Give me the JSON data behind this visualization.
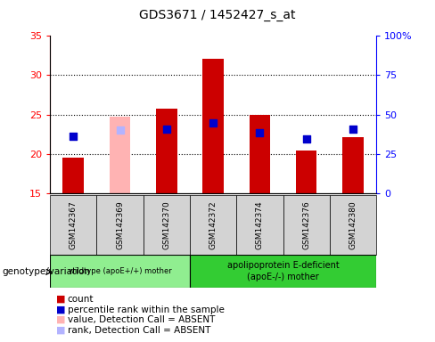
{
  "title": "GDS3671 / 1452427_s_at",
  "samples": [
    "GSM142367",
    "GSM142369",
    "GSM142370",
    "GSM142372",
    "GSM142374",
    "GSM142376",
    "GSM142380"
  ],
  "count_values": [
    19.5,
    15.0,
    25.7,
    32.1,
    25.0,
    20.4,
    22.1
  ],
  "absent_bar_values": [
    null,
    24.7,
    null,
    null,
    null,
    null,
    null
  ],
  "percentile_rank_left": [
    22.2,
    23.0,
    23.2,
    23.9,
    22.7,
    21.9,
    23.2
  ],
  "absent_rank_left": [
    null,
    23.1,
    null,
    null,
    null,
    null,
    null
  ],
  "is_absent": [
    false,
    true,
    false,
    false,
    false,
    false,
    false
  ],
  "ylim_left": [
    15,
    35
  ],
  "ylim_right": [
    0,
    100
  ],
  "yticks_left": [
    15,
    20,
    25,
    30,
    35
  ],
  "yticks_right": [
    0,
    25,
    50,
    75,
    100
  ],
  "ytick_labels_right": [
    "0",
    "25",
    "50",
    "75",
    "100%"
  ],
  "bar_color_present": "#cc0000",
  "bar_color_absent": "#ffb3b3",
  "dot_color_present": "#0000cc",
  "dot_color_absent": "#b3b3ff",
  "group1_label": "wildtype (apoE+/+) mother",
  "group2_label": "apolipoprotein E-deficient\n(apoE-/-) mother",
  "group1_indices": [
    0,
    1,
    2
  ],
  "group2_indices": [
    3,
    4,
    5,
    6
  ],
  "group1_color": "#90ee90",
  "group2_color": "#33cc33",
  "genotype_label": "genotype/variation",
  "legend_items": [
    {
      "label": "count",
      "color": "#cc0000"
    },
    {
      "label": "percentile rank within the sample",
      "color": "#0000cc"
    },
    {
      "label": "value, Detection Call = ABSENT",
      "color": "#ffb3b3"
    },
    {
      "label": "rank, Detection Call = ABSENT",
      "color": "#b3b3ff"
    }
  ],
  "bar_width": 0.45,
  "dot_size": 40,
  "base_value": 15
}
